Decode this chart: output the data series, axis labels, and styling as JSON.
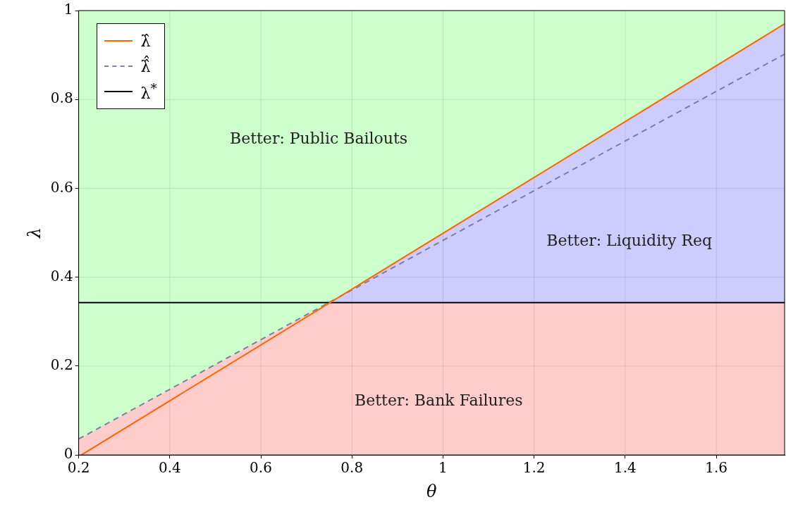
{
  "chart_data": {
    "type": "line",
    "xlabel": "θ",
    "ylabel": "λ",
    "xlim": [
      0.2,
      1.75
    ],
    "ylim": [
      0,
      1
    ],
    "xticks": [
      0.2,
      0.4,
      0.6,
      0.8,
      1,
      1.2,
      1.4,
      1.6
    ],
    "yticks": [
      0,
      0.2,
      0.4,
      0.6,
      0.8,
      1
    ],
    "grid": true,
    "legend": "top left",
    "marker": "none",
    "stacked": true,
    "series": [
      {
        "type": "area",
        "color": "#ffcccc",
        "x": [
          0.2,
          0.75,
          1.75
        ],
        "values": [
          0.036,
          0.343,
          0.343
        ]
      },
      {
        "type": "area",
        "color": "#ccccff",
        "x": [
          0.2,
          0.75,
          1.75
        ],
        "values": [
          0,
          0,
          0.627
        ]
      },
      {
        "type": "area",
        "color": "#ccffcc",
        "x": [
          0.2,
          0.75,
          1.75
        ],
        "values": [
          0.964,
          0.657,
          0.03
        ]
      },
      {
        "type": "line",
        "name": "λ̂",
        "color": "#ff6600",
        "line_style": "solid",
        "x": [
          0.206,
          1.75
        ],
        "values": [
          0,
          0.97
        ]
      },
      {
        "type": "line",
        "name": "λ̂̂",
        "color": "#7f7f9f",
        "line_style": "dashed",
        "x": [
          0.2,
          1.75
        ],
        "values": [
          0.036,
          0.902
        ]
      },
      {
        "type": "line",
        "name": "λ$^{*}$",
        "color": "#000000",
        "line_style": "solid",
        "x": [
          0.2,
          1.75
        ],
        "values": [
          0.343,
          0.343
        ]
      }
    ],
    "annotations": [
      "Better: Public Bailouts",
      "Better: Liquidity Req",
      "Better: Bank Failures"
    ]
  }
}
